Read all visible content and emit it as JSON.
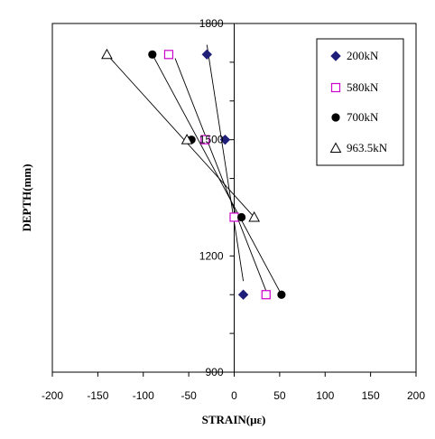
{
  "chart_data": {
    "type": "scatter",
    "xlabel": "STRAIN(με)",
    "ylabel": "DEPTH(mm)",
    "xlim": [
      -200,
      200
    ],
    "ylim": [
      900,
      1800
    ],
    "x_ticks": [
      "-200",
      "-150",
      "-100",
      "-50",
      "0",
      "50",
      "100",
      "150",
      "200"
    ],
    "y_ticks": [
      "900",
      "1200",
      "1500",
      "1800"
    ],
    "grid": false,
    "legend_position": "top-right",
    "series": [
      {
        "name": "200kN",
        "marker": "diamond-filled",
        "color": "#1f1f7a",
        "points": [
          [
            -30,
            1720
          ],
          [
            -10,
            1500
          ],
          [
            10,
            1100
          ]
        ],
        "fit_line": [
          [
            -30,
            1745
          ],
          [
            10,
            1135
          ]
        ]
      },
      {
        "name": "580kN",
        "marker": "square-open",
        "color": "#cc00cc",
        "points": [
          [
            -72,
            1720
          ],
          [
            -32,
            1500
          ],
          [
            0,
            1300
          ],
          [
            35,
            1100
          ]
        ],
        "fit_line": [
          [
            -65,
            1710
          ],
          [
            35,
            1110
          ]
        ]
      },
      {
        "name": "700kN",
        "marker": "circle-filled",
        "color": "#000000",
        "points": [
          [
            -90,
            1720
          ],
          [
            -47,
            1500
          ],
          [
            8,
            1300
          ],
          [
            52,
            1100
          ]
        ],
        "fit_line": [
          [
            -90,
            1720
          ],
          [
            52,
            1100
          ]
        ]
      },
      {
        "name": "963.5kN",
        "marker": "triangle-open",
        "color": "#000000",
        "points": [
          [
            -140,
            1720
          ],
          [
            -52,
            1500
          ],
          [
            22,
            1300
          ]
        ],
        "fit_line": [
          [
            -140,
            1720
          ],
          [
            22,
            1300
          ]
        ]
      }
    ]
  }
}
